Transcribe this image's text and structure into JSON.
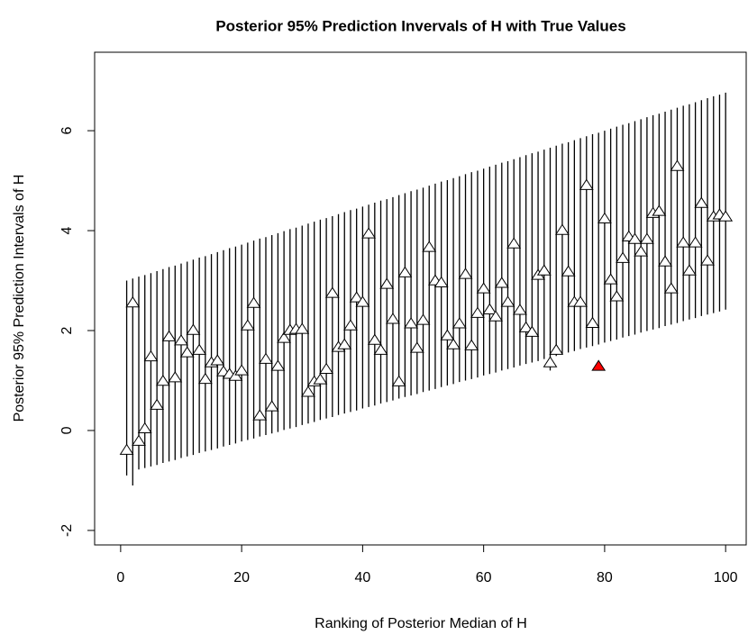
{
  "chart_data": {
    "type": "interval",
    "title": "Posterior 95% Prediction Invervals of H with True Values",
    "x_label": "Ranking of Posterior Median of H",
    "y_label": "Posterior 95% Prediction Intervals of H",
    "x": [
      1,
      2,
      3,
      4,
      5,
      6,
      7,
      8,
      9,
      10,
      11,
      12,
      13,
      14,
      15,
      16,
      17,
      18,
      19,
      20,
      21,
      22,
      23,
      24,
      25,
      26,
      27,
      28,
      29,
      30,
      31,
      32,
      33,
      34,
      35,
      36,
      37,
      38,
      39,
      40,
      41,
      42,
      43,
      44,
      45,
      46,
      47,
      48,
      49,
      50,
      51,
      52,
      53,
      54,
      55,
      56,
      57,
      58,
      59,
      60,
      61,
      62,
      63,
      64,
      65,
      66,
      67,
      68,
      69,
      70,
      71,
      72,
      73,
      74,
      75,
      76,
      77,
      78,
      79,
      80,
      81,
      82,
      83,
      84,
      85,
      86,
      87,
      88,
      89,
      90,
      91,
      92,
      93,
      94,
      95,
      96,
      97,
      98,
      99,
      100
    ],
    "lower": [
      -0.9,
      -1.1,
      -0.78,
      -0.75,
      -0.72,
      -0.69,
      -0.65,
      -0.62,
      -0.59,
      -0.55,
      -0.52,
      -0.49,
      -0.45,
      -0.42,
      -0.39,
      -0.36,
      -0.32,
      -0.29,
      -0.26,
      -0.22,
      -0.19,
      -0.16,
      -0.12,
      -0.09,
      -0.06,
      -0.03,
      0.01,
      0.04,
      0.07,
      0.11,
      0.14,
      0.17,
      0.21,
      0.24,
      0.27,
      0.31,
      0.34,
      0.37,
      0.4,
      0.44,
      0.47,
      0.5,
      0.54,
      0.57,
      0.6,
      0.64,
      0.67,
      0.7,
      0.73,
      0.77,
      0.8,
      0.83,
      0.87,
      0.9,
      0.93,
      0.97,
      1.0,
      1.03,
      1.06,
      1.1,
      1.13,
      1.16,
      1.2,
      1.23,
      1.26,
      1.3,
      1.33,
      1.36,
      1.39,
      1.43,
      1.2,
      1.49,
      1.53,
      1.56,
      1.59,
      1.63,
      1.66,
      1.69,
      1.72,
      1.76,
      1.79,
      1.82,
      1.86,
      1.89,
      1.92,
      1.96,
      1.99,
      2.02,
      2.05,
      2.09,
      2.12,
      2.15,
      2.19,
      2.22,
      2.25,
      2.29,
      2.32,
      2.35,
      2.38,
      2.42
    ],
    "upper": [
      3.0,
      3.04,
      3.08,
      3.11,
      3.15,
      3.19,
      3.23,
      3.27,
      3.3,
      3.34,
      3.38,
      3.42,
      3.46,
      3.49,
      3.53,
      3.57,
      3.61,
      3.65,
      3.68,
      3.72,
      3.76,
      3.8,
      3.84,
      3.87,
      3.91,
      3.95,
      3.99,
      4.03,
      4.06,
      4.1,
      4.14,
      4.18,
      4.22,
      4.25,
      4.29,
      4.33,
      4.37,
      4.41,
      4.44,
      4.48,
      4.52,
      4.56,
      4.6,
      4.63,
      4.67,
      4.71,
      4.75,
      4.79,
      4.82,
      4.86,
      4.9,
      4.94,
      4.98,
      5.01,
      5.05,
      5.09,
      5.13,
      5.17,
      5.2,
      5.24,
      5.28,
      5.32,
      5.36,
      5.39,
      5.43,
      5.47,
      5.51,
      5.55,
      5.58,
      5.62,
      5.66,
      5.7,
      5.74,
      5.77,
      5.81,
      5.85,
      5.89,
      5.93,
      5.96,
      6.0,
      6.04,
      6.08,
      6.12,
      6.15,
      6.19,
      6.23,
      6.27,
      6.31,
      6.34,
      6.38,
      6.42,
      6.46,
      6.5,
      6.53,
      6.57,
      6.61,
      6.65,
      6.69,
      6.72,
      6.76
    ],
    "values": [
      -0.4,
      2.55,
      -0.22,
      0.03,
      1.47,
      0.5,
      0.98,
      1.87,
      1.05,
      1.79,
      1.55,
      2.0,
      1.6,
      1.02,
      1.35,
      1.39,
      1.17,
      1.12,
      1.08,
      1.19,
      2.09,
      2.54,
      0.29,
      1.42,
      0.47,
      1.28,
      1.84,
      2.0,
      2.02,
      2.02,
      0.76,
      0.97,
      1.01,
      1.22,
      2.74,
      1.66,
      1.71,
      2.09,
      2.65,
      2.56,
      3.93,
      1.8,
      1.6,
      2.92,
      2.22,
      0.97,
      3.15,
      2.13,
      1.64,
      2.2,
      3.66,
      2.99,
      2.95,
      1.89,
      1.71,
      2.13,
      3.12,
      1.69,
      2.34,
      2.83,
      2.41,
      2.27,
      2.94,
      2.56,
      3.73,
      2.4,
      2.05,
      1.96,
      3.1,
      3.19,
      1.35,
      1.6,
      4.0,
      3.17,
      2.56,
      2.56,
      4.9,
      2.14,
      1.28,
      4.23,
      3.01,
      2.67,
      3.44,
      3.87,
      3.82,
      3.57,
      3.82,
      4.34,
      4.38,
      3.37,
      2.83,
      5.28,
      3.75,
      3.19,
      3.75,
      4.54,
      3.39,
      4.27,
      4.31,
      4.27
    ],
    "marker_color": "#000000",
    "outside_color": "#ff0000",
    "line_color": "#000000",
    "xlim": [
      -4.3,
      103.4
    ],
    "ylim": [
      -2.29,
      7.57
    ],
    "xticks": [
      0,
      20,
      40,
      60,
      80,
      100
    ],
    "yticks": [
      -2,
      0,
      2,
      4,
      6
    ]
  }
}
